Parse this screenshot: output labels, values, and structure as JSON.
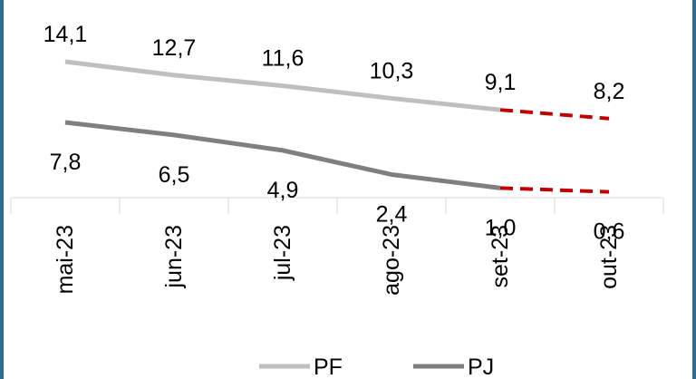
{
  "chart_data": {
    "type": "line",
    "categories": [
      "mai-23",
      "jun-23",
      "jul-23",
      "ago-23",
      "set-23",
      "out-23"
    ],
    "series": [
      {
        "name": "PF",
        "values": [
          14.1,
          12.7,
          11.6,
          10.3,
          9.1,
          8.2
        ],
        "labels": [
          "14,1",
          "12,7",
          "11,6",
          "10,3",
          "9,1",
          "8,2"
        ],
        "color": "#bfbfbf",
        "projection_from_index": 4
      },
      {
        "name": "PJ",
        "values": [
          7.8,
          6.5,
          4.9,
          2.4,
          1.0,
          0.6
        ],
        "labels": [
          "7,8",
          "6,5",
          "4,9",
          "2,4",
          "1,0",
          "0,6"
        ],
        "color": "#7f7f7f",
        "projection_from_index": 4
      }
    ],
    "projection_color": "#c00000",
    "ylim": [
      0,
      14.1
    ],
    "grid": false,
    "legend": "bottom-center"
  }
}
